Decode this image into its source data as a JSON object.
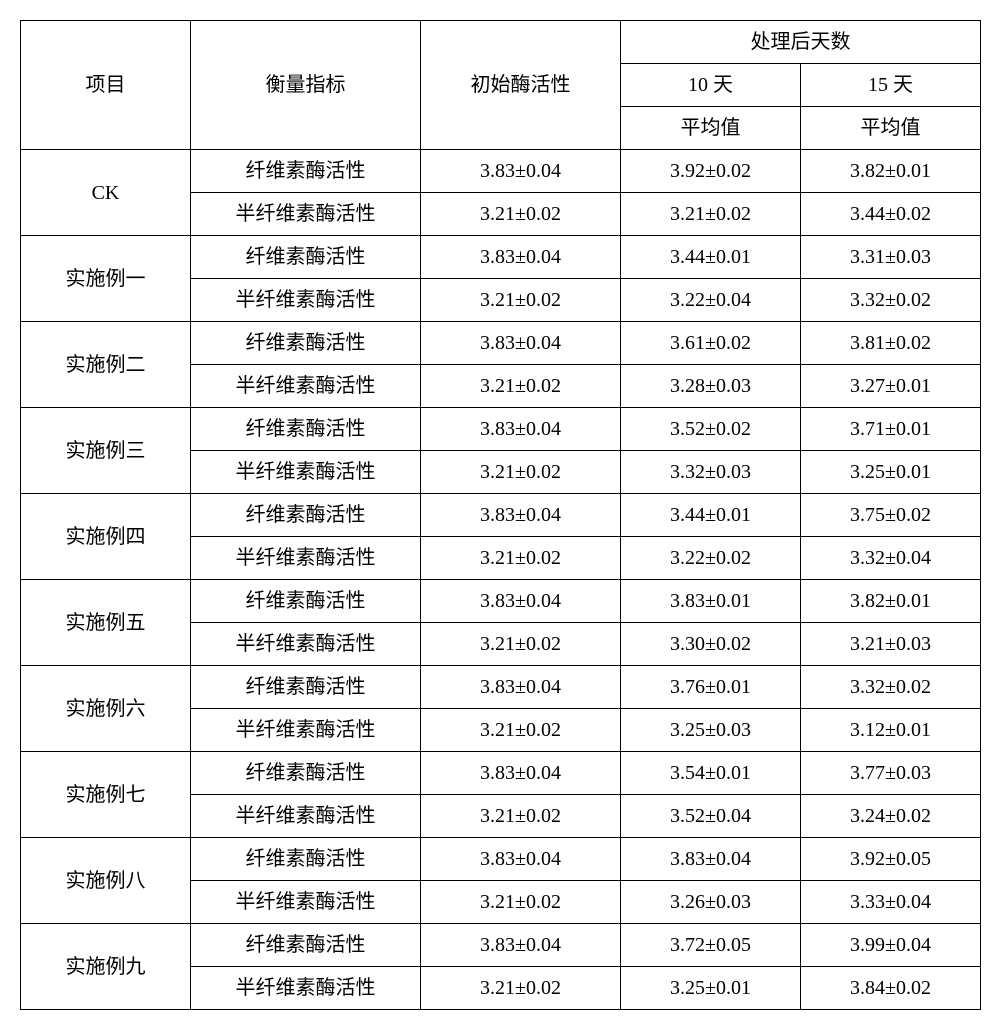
{
  "headers": {
    "item": "项目",
    "metric": "衡量指标",
    "initial": "初始酶活性",
    "days_after": "处理后天数",
    "day10": "10 天",
    "day15": "15 天",
    "avg": "平均值"
  },
  "metrics": {
    "cellulase": "纤维素酶活性",
    "hemicellulase": "半纤维素酶活性"
  },
  "initial": {
    "cellulase": "3.83±0.04",
    "hemicellulase": "3.21±0.02"
  },
  "rows": [
    {
      "name": "CK",
      "cellulase_d10": "3.92±0.02",
      "cellulase_d15": "3.82±0.01",
      "hemi_d10": "3.21±0.02",
      "hemi_d15": "3.44±0.02"
    },
    {
      "name": "实施例一",
      "cellulase_d10": "3.44±0.01",
      "cellulase_d15": "3.31±0.03",
      "hemi_d10": "3.22±0.04",
      "hemi_d15": "3.32±0.02"
    },
    {
      "name": "实施例二",
      "cellulase_d10": "3.61±0.02",
      "cellulase_d15": "3.81±0.02",
      "hemi_d10": "3.28±0.03",
      "hemi_d15": "3.27±0.01"
    },
    {
      "name": "实施例三",
      "cellulase_d10": "3.52±0.02",
      "cellulase_d15": "3.71±0.01",
      "hemi_d10": "3.32±0.03",
      "hemi_d15": "3.25±0.01"
    },
    {
      "name": "实施例四",
      "cellulase_d10": "3.44±0.01",
      "cellulase_d15": "3.75±0.02",
      "hemi_d10": "3.22±0.02",
      "hemi_d15": "3.32±0.04"
    },
    {
      "name": "实施例五",
      "cellulase_d10": "3.83±0.01",
      "cellulase_d15": "3.82±0.01",
      "hemi_d10": "3.30±0.02",
      "hemi_d15": "3.21±0.03"
    },
    {
      "name": "实施例六",
      "cellulase_d10": "3.76±0.01",
      "cellulase_d15": "3.32±0.02",
      "hemi_d10": "3.25±0.03",
      "hemi_d15": "3.12±0.01"
    },
    {
      "name": "实施例七",
      "cellulase_d10": "3.54±0.01",
      "cellulase_d15": "3.77±0.03",
      "hemi_d10": "3.52±0.04",
      "hemi_d15": "3.24±0.02"
    },
    {
      "name": "实施例八",
      "cellulase_d10": "3.83±0.04",
      "cellulase_d15": "3.92±0.05",
      "hemi_d10": "3.26±0.03",
      "hemi_d15": "3.33±0.04"
    },
    {
      "name": "实施例九",
      "cellulase_d10": "3.72±0.05",
      "cellulase_d15": "3.99±0.04",
      "hemi_d10": "3.25±0.01",
      "hemi_d15": "3.84±0.02"
    }
  ]
}
